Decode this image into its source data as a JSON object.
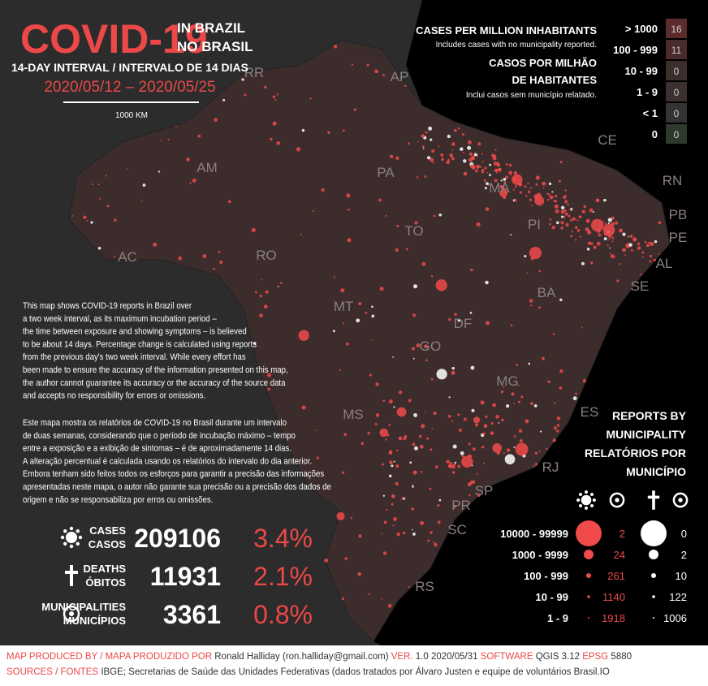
{
  "header": {
    "title": "COVID-19",
    "subtitle_en": "IN BRAZIL",
    "subtitle_pt": "NO BRASIL",
    "interval": "14-DAY INTERVAL / INTERVALO DE 14 DIAS",
    "dates": "2020/05/12 – 2020/05/25",
    "scale": "1000 KM"
  },
  "states": [
    "RR",
    "AP",
    "AM",
    "PA",
    "MA",
    "CE",
    "RN",
    "PB",
    "PE",
    "AL",
    "SE",
    "PI",
    "TO",
    "AC",
    "RO",
    "MT",
    "BA",
    "DF",
    "GO",
    "MG",
    "ES",
    "MS",
    "RJ",
    "SP",
    "PR",
    "SC",
    "RS"
  ],
  "choropleth_legend": {
    "title_en": "CASES PER MILLION INHABITANTS",
    "note_en": "Includes cases with no municipality reported.",
    "title_pt": [
      "CASOS POR MILHÃO",
      "DE HABITANTES"
    ],
    "note_pt": "Inclui casos sem município relatado.",
    "rows": [
      {
        "range": "> 1000",
        "count": "16"
      },
      {
        "range": "100 - 999",
        "count": "11"
      },
      {
        "range": "10 - 99",
        "count": "0"
      },
      {
        "range": "1 - 9",
        "count": "0"
      },
      {
        "range": "< 1",
        "count": "0"
      },
      {
        "range": "0",
        "count": "0"
      }
    ]
  },
  "description": {
    "en": [
      "This map shows COVID-19 reports in Brazil over",
      "a two week interval, as its maximum incubation period –",
      "the time between exposure and showing symptoms – is believed",
      "to be about 14 days. Percentage change is calculated using reports",
      "from the previous day's two week interval. While every effort has",
      "been made to ensure the accuracy of the information presented on this map,",
      "the author cannot guarantee its accuracy or the accuracy of the source data",
      "and accepts no responsibility for errors or omissions."
    ],
    "pt": [
      "Este mapa mostra os relatórios de COVID-19 no Brasil durante um intervalo",
      "de duas semanas, considerando que o período de incubação máximo – tempo",
      "entre a exposição e a exibição de sintomas – é de aproximadamente 14 dias.",
      "A alteração percentual é calculada usando os relatórios do intervalo do dia anterior.",
      "Embora tenham sido feitos todos os esforços para garantir a precisão das informações",
      "apresentadas neste mapa, o autor não garante sua precisão ou a precisão dos dados de",
      "origem e não se responsabiliza por erros ou omissões."
    ]
  },
  "totals": [
    {
      "label_en": "CASES",
      "label_pt": "CASOS",
      "value": "209106",
      "change": "3.4%"
    },
    {
      "label_en": "DEATHS",
      "label_pt": "ÓBITOS",
      "value": "11931",
      "change": "2.1%"
    },
    {
      "label_en": "MUNICIPALITIES",
      "label_pt": "MUNICÍPIOS",
      "value": "3361",
      "change": "0.8%"
    }
  ],
  "reports_legend": {
    "title_en": [
      "REPORTS BY",
      "MUNICIPALITY"
    ],
    "title_pt": [
      "RELATÓRIOS POR",
      "MUNICÍPIO"
    ],
    "rows": [
      {
        "range": "10000 - 99999",
        "cases": "2",
        "deaths": "0"
      },
      {
        "range": "1000 - 9999",
        "cases": "24",
        "deaths": "2"
      },
      {
        "range": "100 - 999",
        "cases": "261",
        "deaths": "10"
      },
      {
        "range": "10 - 99",
        "cases": "1140",
        "deaths": "122"
      },
      {
        "range": "1 - 9",
        "cases": "1918",
        "deaths": "1006"
      }
    ]
  },
  "footer": {
    "produced_label": "MAP PRODUCED BY / MAPA PRODUZIDO POR",
    "produced": "Ronald Halliday (ron.halliday@gmail.com)",
    "version_label": "VER.",
    "version": "1.0 2020/05/31",
    "software_label": "SOFTWARE",
    "software": "QGIS 3.12",
    "epsg_label": "EPSG",
    "epsg": "5880",
    "sources_label": "SOURCES / FONTES",
    "sources": "IBGE; Secretarias de Saúde das Unidades Federativas (dados tratados por Álvaro Justen e equipe de voluntários Brasil.IO"
  }
}
